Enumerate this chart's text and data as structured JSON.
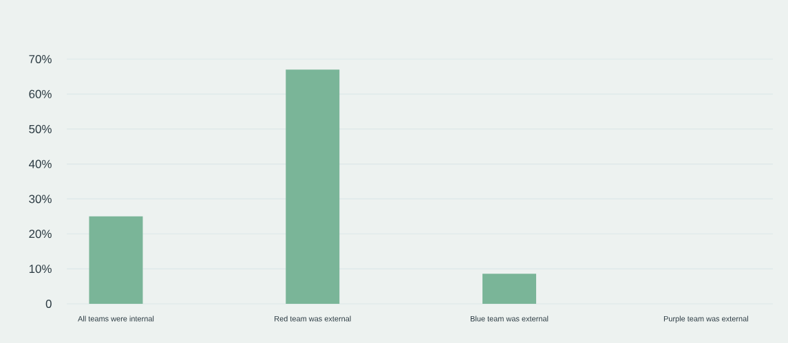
{
  "chart_data": {
    "type": "bar",
    "categories": [
      "All teams were internal",
      "Red team was external",
      "Blue team was external",
      "Purple team was external"
    ],
    "values": [
      25,
      67,
      8.6,
      0
    ],
    "color": "#7ab598",
    "ylim": [
      0,
      70
    ],
    "yticks": [
      0,
      {
        "value": 10,
        "label": "10%"
      },
      {
        "value": 20,
        "label": "20%"
      },
      {
        "value": 30,
        "label": "30%"
      },
      {
        "value": 40,
        "label": "40%"
      },
      {
        "value": 50,
        "label": "50%"
      },
      {
        "value": 60,
        "label": "60%"
      },
      {
        "value": 70,
        "label": "70%"
      }
    ],
    "grid": "y"
  }
}
